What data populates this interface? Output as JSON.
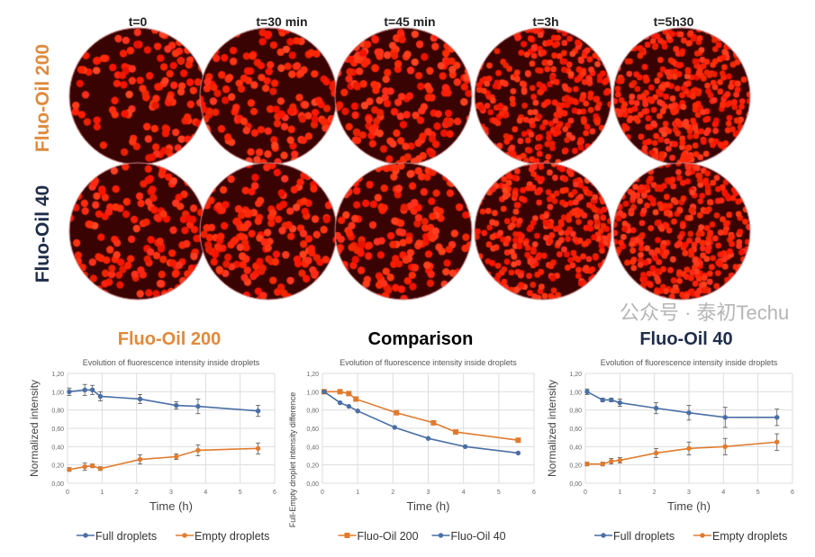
{
  "time_labels": [
    "t=0",
    "t=30 min",
    "t=45 min",
    "t=3h",
    "t=5h30"
  ],
  "row_labels": [
    "Fluo-Oil 200",
    "Fluo-Oil 40"
  ],
  "colors": {
    "orange": "#e08a3c",
    "navy": "#1f2d4a",
    "blue": "#4a6fa5",
    "series_orange": "#e07b2e",
    "droplet": "#ff2a12",
    "bg_dark": "#3a0303"
  },
  "watermark": "公众号 · 泰初Techu",
  "chart_data": [
    {
      "type": "line",
      "heading": "Fluo-Oil 200",
      "heading_color": "#e08a3c",
      "title": "Evolution of fluorescence intensity inside droplets",
      "xlabel": "Time (h)",
      "ylabel": "Normalized intensity",
      "xlim": [
        0,
        6
      ],
      "ylim": [
        0,
        1.2
      ],
      "xticks": [
        "0",
        "1",
        "2",
        "3",
        "4",
        "5",
        "6"
      ],
      "yticks": [
        "0,00",
        "0,20",
        "0,40",
        "0,60",
        "0,80",
        "1,00",
        "1,20"
      ],
      "legend": "bottom",
      "series": [
        {
          "name": "Full droplets",
          "color": "#4a6fa5",
          "marker": "circle",
          "x": [
            0.05,
            0.5,
            0.72,
            0.95,
            2.1,
            3.15,
            3.78,
            5.52
          ],
          "y": [
            1.0,
            1.02,
            1.02,
            0.95,
            0.92,
            0.85,
            0.84,
            0.79
          ],
          "err": [
            0.04,
            0.06,
            0.05,
            0.05,
            0.05,
            0.04,
            0.08,
            0.06
          ]
        },
        {
          "name": "Empty droplets",
          "color": "#e07b2e",
          "marker": "circle",
          "x": [
            0.05,
            0.5,
            0.72,
            0.95,
            2.1,
            3.15,
            3.78,
            5.52
          ],
          "y": [
            0.15,
            0.18,
            0.19,
            0.16,
            0.26,
            0.29,
            0.36,
            0.38
          ],
          "err": [
            0.02,
            0.04,
            0.02,
            0.02,
            0.05,
            0.03,
            0.06,
            0.06
          ]
        }
      ]
    },
    {
      "type": "line",
      "heading": "Comparison",
      "heading_color": "#000000",
      "title": "Evolution of fluorescence intensity inside droplets",
      "xlabel": "Time (h)",
      "ylabel": "Full-Empty droplet intensity difference",
      "xlim": [
        0,
        6
      ],
      "ylim": [
        0,
        1.2
      ],
      "xticks": [
        "0",
        "1",
        "2",
        "3",
        "4",
        "5",
        "6"
      ],
      "yticks": [
        "0,00",
        "0,20",
        "0,40",
        "0,60",
        "0,80",
        "1,00",
        "1,20"
      ],
      "legend": "bottom",
      "series": [
        {
          "name": "Fluo-Oil 200",
          "color": "#e07b2e",
          "marker": "square",
          "x": [
            0.05,
            0.5,
            0.75,
            0.95,
            2.1,
            3.15,
            3.78,
            5.55
          ],
          "y": [
            1.0,
            1.0,
            0.98,
            0.92,
            0.77,
            0.66,
            0.56,
            0.47
          ],
          "err": []
        },
        {
          "name": "Fluo-Oil 40",
          "color": "#4a6fa5",
          "marker": "circle",
          "x": [
            0.05,
            0.5,
            0.75,
            1.0,
            2.05,
            3.0,
            4.05,
            5.55
          ],
          "y": [
            1.0,
            0.88,
            0.84,
            0.79,
            0.61,
            0.49,
            0.4,
            0.33
          ],
          "err": []
        }
      ]
    },
    {
      "type": "line",
      "heading": "Fluo-Oil 40",
      "heading_color": "#1f2d4a",
      "title": "Evolution of fluorescence intensity inside droplets",
      "xlabel": "Time (h)",
      "ylabel": "Normalized intensity",
      "xlim": [
        0,
        6
      ],
      "ylim": [
        0,
        1.2
      ],
      "xticks": [
        "0",
        "1",
        "2",
        "3",
        "4",
        "5",
        "6"
      ],
      "yticks": [
        "0,00",
        "0,20",
        "0,40",
        "0,60",
        "0,80",
        "1,00",
        "1,20"
      ],
      "legend": "bottom",
      "series": [
        {
          "name": "Full droplets",
          "color": "#4a6fa5",
          "marker": "circle",
          "x": [
            0.05,
            0.5,
            0.75,
            1.0,
            2.05,
            3.0,
            4.05,
            5.55
          ],
          "y": [
            1.0,
            0.91,
            0.91,
            0.88,
            0.82,
            0.77,
            0.72,
            0.72
          ],
          "err": [
            0.03,
            0.02,
            0.02,
            0.04,
            0.06,
            0.08,
            0.11,
            0.09
          ]
        },
        {
          "name": "Empty droplets",
          "color": "#e07b2e",
          "marker": "circle",
          "x": [
            0.05,
            0.5,
            0.75,
            1.0,
            2.05,
            3.0,
            4.05,
            5.55
          ],
          "y": [
            0.21,
            0.21,
            0.24,
            0.25,
            0.33,
            0.38,
            0.4,
            0.45
          ],
          "err": [
            0.02,
            0.02,
            0.03,
            0.03,
            0.05,
            0.07,
            0.09,
            0.09
          ]
        }
      ]
    }
  ]
}
